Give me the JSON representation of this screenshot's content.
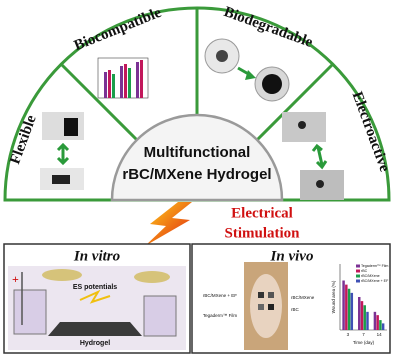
{
  "sectors": [
    "Flexible",
    "Biocompatible",
    "Biodegradable",
    "Electroactive"
  ],
  "center": {
    "line1": "Multifunctional",
    "line2": "rBC/MXene Hydrogel"
  },
  "stimulus": {
    "line1": "Electrical",
    "line2": "Stimulation"
  },
  "in_vitro": {
    "title": "In vitro",
    "labels": [
      "ES potentials",
      "Hydrogel"
    ]
  },
  "in_vivo": {
    "title": "In vivo",
    "labels": [
      "rBC/MXene + EF",
      "Tegaderm™ Film",
      "rBC/MXene",
      "rBC"
    ],
    "chart_data": {
      "type": "bar",
      "y_label": "Wound area (%)",
      "x_label": "Time (day)",
      "categories": [
        "3",
        "7",
        "14"
      ],
      "ylim": [
        0,
        80
      ],
      "series": [
        {
          "name": "Tegaderm™ Film",
          "color": "#7b3294",
          "values": [
            60,
            40,
            22
          ]
        },
        {
          "name": "rBC",
          "color": "#c2185b",
          "values": [
            55,
            35,
            18
          ]
        },
        {
          "name": "rBC/MXene",
          "color": "#1b9e4b",
          "values": [
            50,
            30,
            12
          ]
        },
        {
          "name": "rBC/MXene + EF",
          "color": "#3f51b5",
          "values": [
            45,
            22,
            8
          ]
        }
      ]
    }
  }
}
